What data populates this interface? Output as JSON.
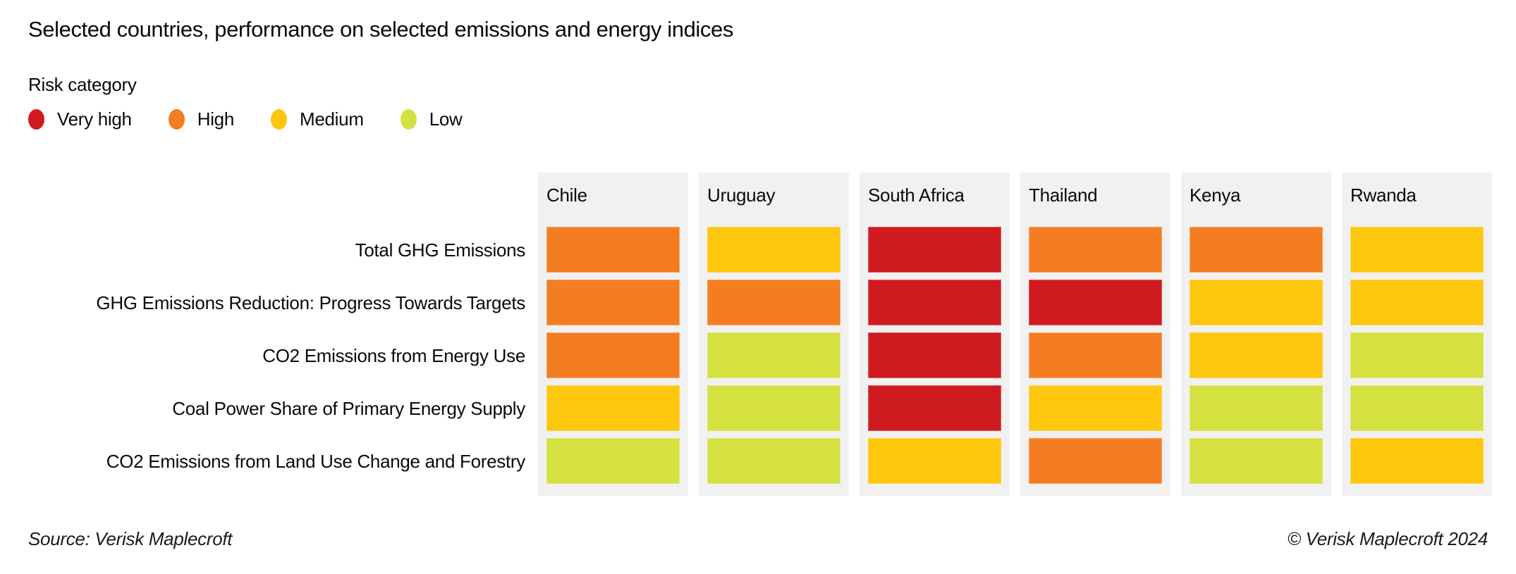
{
  "title": "Selected countries, performance on selected emissions and energy indices",
  "legend": {
    "title": "Risk category",
    "items": [
      {
        "label": "Very high",
        "key": "very_high",
        "color": "#cf1b20"
      },
      {
        "label": "High",
        "key": "high",
        "color": "#f47d21"
      },
      {
        "label": "Medium",
        "key": "medium",
        "color": "#fdc70d"
      },
      {
        "label": "Low",
        "key": "low",
        "color": "#d5e041"
      }
    ]
  },
  "chart_data": {
    "type": "heatmap",
    "title": "Selected countries, performance on selected emissions and energy indices",
    "legend_position": "top-left",
    "value_scale": [
      "very_high",
      "high",
      "medium",
      "low"
    ],
    "columns": [
      "Chile",
      "Uruguay",
      "South Africa",
      "Thailand",
      "Kenya",
      "Rwanda"
    ],
    "rows": [
      {
        "label": "Total GHG Emissions",
        "values": [
          "high",
          "medium",
          "very_high",
          "high",
          "high",
          "medium"
        ]
      },
      {
        "label": "GHG Emissions Reduction: Progress Towards Targets",
        "values": [
          "high",
          "high",
          "very_high",
          "very_high",
          "medium",
          "medium"
        ]
      },
      {
        "label": "CO2 Emissions from Energy Use",
        "values": [
          "high",
          "low",
          "very_high",
          "high",
          "medium",
          "low"
        ]
      },
      {
        "label": "Coal Power Share of Primary Energy Supply",
        "values": [
          "medium",
          "low",
          "very_high",
          "medium",
          "low",
          "low"
        ]
      },
      {
        "label": "CO2 Emissions from Land Use Change and Forestry",
        "values": [
          "low",
          "low",
          "medium",
          "high",
          "low",
          "medium"
        ]
      }
    ]
  },
  "footer": {
    "source": "Source: Verisk Maplecroft",
    "copyright": "© Verisk Maplecroft 2024"
  },
  "colors": {
    "very_high": "#cf1b20",
    "high": "#f47d21",
    "medium": "#fdc70d",
    "low": "#d5e041",
    "panel_bg": "#f1f1f1",
    "page_bg": "#ffffff",
    "text": "#0a0a0a"
  }
}
